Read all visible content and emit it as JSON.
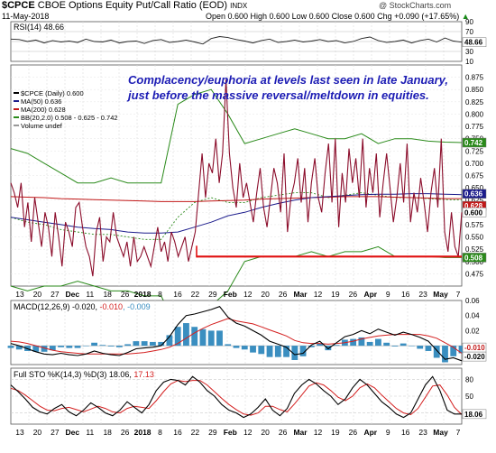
{
  "header": {
    "symbol": "$CPCE",
    "name": "CBOE Options Equity Put/Call Ratio (EOD)",
    "exchange": "INDX",
    "date": "11-May-2018",
    "ohlc": "Open 0.600  High 0.600  Low 0.600  Close 0.600  Chg +0.090 (+17.65%)",
    "chg_arrow": "▲",
    "watermark": "@ StockCharts.com"
  },
  "annotation": {
    "line1": "Complacency/euphoria at levels last seen in late January,",
    "line2": "just before the massive reversal/meltdown in equities."
  },
  "colors": {
    "price": "#8b0d2b",
    "ma50": "#1c1c8c",
    "ma200": "#c21818",
    "bb": "#2a8a1a",
    "macd": "#000000",
    "signal": "#d42020",
    "hist": "#3a8ec0",
    "support": "#e01010"
  },
  "chart_data": [
    {
      "type": "line",
      "panel": "rsi",
      "title": "RSI(14) 48.66",
      "ylim": [
        10,
        90
      ],
      "ticks": [
        "90",
        "70",
        "50",
        "30",
        "10"
      ],
      "last_value_label": "48.66",
      "values": [
        55,
        54,
        50,
        53,
        47,
        52,
        49,
        51,
        48,
        55,
        50,
        49,
        53,
        47,
        50,
        51,
        46,
        52,
        54,
        48,
        50,
        53,
        49,
        45,
        56,
        60,
        58,
        54,
        51,
        47,
        52,
        55,
        48,
        50,
        53,
        49,
        51,
        54,
        50,
        52,
        47,
        50,
        56,
        59,
        52,
        48,
        50,
        53,
        47,
        52,
        55,
        49,
        57,
        51,
        48.66
      ]
    },
    {
      "type": "line",
      "panel": "price",
      "series": [
        {
          "name": "$CPCE (Daily) 0.600",
          "values": [
            0.66,
            0.64,
            0.61,
            0.66,
            0.57,
            0.62,
            0.54,
            0.63,
            0.58,
            0.53,
            0.6,
            0.57,
            0.51,
            0.6,
            0.55,
            0.49,
            0.58,
            0.56,
            0.53,
            0.61,
            0.62,
            0.57,
            0.53,
            0.51,
            0.47,
            0.56,
            0.59,
            0.5,
            0.55,
            0.54,
            0.6,
            0.55,
            0.53,
            0.51,
            0.54,
            0.49,
            0.55,
            0.5,
            0.51,
            0.53,
            0.51,
            0.49,
            0.53,
            0.57,
            0.52,
            0.54,
            0.5,
            0.56,
            0.54,
            0.51,
            0.53,
            0.55,
            0.5,
            0.53,
            0.56,
            0.64,
            0.72,
            0.63,
            0.7,
            0.68,
            0.75,
            0.66,
            0.72,
            0.87,
            0.72,
            0.65,
            0.61,
            0.7,
            0.63,
            0.66,
            0.62,
            0.58,
            0.64,
            0.69,
            0.61,
            0.57,
            0.63,
            0.69,
            0.66,
            0.6,
            0.72,
            0.56,
            0.63,
            0.66,
            0.71,
            0.62,
            0.69,
            0.58,
            0.66,
            0.71,
            0.63,
            0.6,
            0.68,
            0.74,
            0.62,
            0.75,
            0.57,
            0.68,
            0.62,
            0.73,
            0.66,
            0.71,
            0.63,
            0.75,
            0.61,
            0.69,
            0.64,
            0.72,
            0.59,
            0.66,
            0.72,
            0.65,
            0.58,
            0.63,
            0.7,
            0.62,
            0.74,
            0.58,
            0.64,
            0.6,
            0.67,
            0.62,
            0.56,
            0.64,
            0.69,
            0.61,
            0.75,
            0.56,
            0.52,
            0.6,
            0.53,
            0.51,
            0.6
          ]
        },
        {
          "name": "MA(50) 0.636",
          "values": [
            0.59,
            0.585,
            0.58,
            0.575,
            0.57,
            0.567,
            0.565,
            0.56,
            0.558,
            0.558,
            0.56,
            0.57,
            0.58,
            0.593,
            0.6,
            0.61,
            0.618,
            0.625,
            0.63,
            0.632,
            0.634,
            0.636,
            0.637,
            0.637,
            0.638,
            0.638,
            0.637,
            0.636
          ]
        },
        {
          "name": "MA(200) 0.628",
          "values": [
            0.632,
            0.631,
            0.63,
            0.628,
            0.627,
            0.626,
            0.625,
            0.624,
            0.623,
            0.622,
            0.622,
            0.622,
            0.623,
            0.624,
            0.625,
            0.627,
            0.628,
            0.629,
            0.63,
            0.631,
            0.632,
            0.632,
            0.632,
            0.631,
            0.63,
            0.629,
            0.628,
            0.628
          ]
        },
        {
          "name": "BB(20,2.0) 0.508 - 0.625 - 0.742",
          "upper": [
            0.73,
            0.72,
            0.7,
            0.68,
            0.66,
            0.66,
            0.67,
            0.66,
            0.66,
            0.66,
            0.82,
            0.84,
            0.85,
            0.8,
            0.74,
            0.75,
            0.76,
            0.77,
            0.76,
            0.75,
            0.75,
            0.76,
            0.74,
            0.75,
            0.75,
            0.745,
            0.743,
            0.742
          ],
          "middle": [
            0.59,
            0.58,
            0.575,
            0.565,
            0.56,
            0.555,
            0.555,
            0.55,
            0.545,
            0.545,
            0.59,
            0.62,
            0.63,
            0.62,
            0.62,
            0.63,
            0.635,
            0.64,
            0.64,
            0.63,
            0.635,
            0.64,
            0.635,
            0.63,
            0.63,
            0.628,
            0.626,
            0.625
          ],
          "lower": [
            0.45,
            0.44,
            0.45,
            0.45,
            0.46,
            0.45,
            0.44,
            0.44,
            0.43,
            0.43,
            0.36,
            0.4,
            0.41,
            0.44,
            0.5,
            0.51,
            0.51,
            0.51,
            0.52,
            0.51,
            0.52,
            0.52,
            0.53,
            0.51,
            0.51,
            0.51,
            0.508,
            0.508
          ]
        },
        {
          "name": "Volume undef",
          "values": []
        }
      ],
      "ylim": [
        0.45,
        0.9
      ],
      "yticks": [
        "0.875",
        "0.850",
        "0.825",
        "0.800",
        "0.775",
        "0.750",
        "0.725",
        "0.700",
        "0.675",
        "0.650",
        "0.625",
        "0.600",
        "0.575",
        "0.550",
        "0.525",
        "0.500",
        "0.475"
      ],
      "right_labels": {
        "bb_upper": "0.742",
        "ma50": "0.636",
        "ma200": "0.628",
        "close": "0.600",
        "bb_lower": "0.508"
      },
      "support_level": 0.51
    },
    {
      "type": "line",
      "panel": "macd",
      "title_prefix": "MACD(12,26,9)",
      "title_vals": [
        "-0.020",
        "-0.010",
        "-0.009"
      ],
      "ylim": [
        -0.025,
        0.06
      ],
      "yticks": [
        "0.06",
        "0.04",
        "0.02",
        "0.00"
      ],
      "right_labels": [
        "-0.010",
        "-0.020"
      ],
      "series": [
        {
          "name": "macd",
          "values": [
            0.003,
            0.0,
            -0.004,
            -0.008,
            -0.011,
            -0.012,
            -0.01,
            -0.012,
            -0.013,
            -0.011,
            -0.007,
            -0.01,
            -0.012,
            -0.013,
            -0.009,
            -0.004,
            -0.003,
            -0.002,
            0.0,
            0.012,
            0.028,
            0.04,
            0.042,
            0.045,
            0.048,
            0.052,
            0.038,
            0.03,
            0.026,
            0.02,
            0.014,
            0.006,
            0.002,
            -0.002,
            -0.012,
            -0.01,
            0.001,
            0.006,
            -0.004,
            0.004,
            0.012,
            0.015,
            0.02,
            0.016,
            0.022,
            0.018,
            0.014,
            0.018,
            0.015,
            0.011,
            0.006,
            -0.006,
            -0.018,
            -0.016,
            -0.02
          ]
        },
        {
          "name": "signal",
          "values": [
            0.006,
            0.005,
            0.003,
            0.0,
            -0.003,
            -0.006,
            -0.008,
            -0.009,
            -0.01,
            -0.011,
            -0.011,
            -0.011,
            -0.011,
            -0.011,
            -0.011,
            -0.01,
            -0.009,
            -0.007,
            -0.005,
            -0.002,
            0.003,
            0.01,
            0.017,
            0.023,
            0.028,
            0.032,
            0.036,
            0.033,
            0.031,
            0.029,
            0.025,
            0.021,
            0.017,
            0.013,
            0.007,
            0.004,
            0.003,
            0.003,
            0.002,
            0.003,
            0.004,
            0.006,
            0.009,
            0.011,
            0.013,
            0.014,
            0.015,
            0.015,
            0.015,
            0.015,
            0.013,
            0.01,
            0.004,
            -0.002,
            -0.01
          ]
        },
        {
          "name": "histogram",
          "values": [
            -0.003,
            -0.005,
            -0.007,
            -0.008,
            -0.008,
            -0.006,
            -0.002,
            -0.003,
            -0.003,
            0.0,
            0.004,
            0.001,
            -0.001,
            -0.002,
            0.002,
            0.006,
            0.006,
            0.005,
            0.005,
            0.014,
            0.025,
            0.03,
            0.025,
            0.022,
            0.02,
            0.02,
            0.002,
            -0.003,
            -0.005,
            -0.009,
            -0.011,
            -0.015,
            -0.015,
            -0.015,
            -0.019,
            -0.014,
            -0.002,
            0.003,
            -0.006,
            0.001,
            0.008,
            0.009,
            0.011,
            0.005,
            0.009,
            0.004,
            -0.001,
            0.003,
            0.0,
            -0.004,
            -0.007,
            -0.016,
            -0.022,
            -0.014,
            -0.01
          ]
        }
      ]
    },
    {
      "type": "line",
      "panel": "sto",
      "title_prefix": "Full STO %K(14,3) %D(3)",
      "title_vals": [
        "18.06",
        "17.13"
      ],
      "ylim": [
        0,
        100
      ],
      "yticks": [
        "80",
        "50",
        "20"
      ],
      "right_labels": [
        "18.06"
      ],
      "series": [
        {
          "name": "%K",
          "values": [
            70,
            58,
            45,
            30,
            22,
            18,
            28,
            35,
            22,
            15,
            25,
            38,
            30,
            20,
            15,
            25,
            40,
            30,
            20,
            35,
            60,
            75,
            80,
            78,
            70,
            85,
            75,
            60,
            50,
            35,
            25,
            20,
            12,
            18,
            30,
            45,
            25,
            15,
            28,
            55,
            70,
            80,
            72,
            60,
            50,
            35,
            45,
            65,
            80,
            70,
            55,
            40,
            30,
            18,
            12,
            20,
            45,
            70,
            85,
            60,
            25,
            18,
            18.06
          ]
        },
        {
          "name": "%D",
          "values": [
            64,
            60,
            52,
            42,
            32,
            25,
            24,
            28,
            30,
            26,
            22,
            27,
            32,
            28,
            22,
            20,
            28,
            32,
            30,
            28,
            42,
            58,
            72,
            78,
            76,
            78,
            78,
            70,
            58,
            46,
            35,
            26,
            18,
            16,
            20,
            32,
            32,
            26,
            22,
            36,
            52,
            68,
            74,
            70,
            60,
            48,
            42,
            50,
            65,
            72,
            65,
            52,
            40,
            28,
            20,
            17,
            28,
            48,
            68,
            70,
            52,
            30,
            17.13
          ]
        }
      ]
    }
  ],
  "xaxis_top": [
    "13",
    "20",
    "27",
    "Dec",
    "11",
    "18",
    "26",
    "2018",
    "8",
    "16",
    "22",
    "29",
    "Feb",
    "12",
    "20",
    "26",
    "Mar",
    "12",
    "19",
    "26",
    "Apr",
    "9",
    "16",
    "23",
    "May",
    "7"
  ],
  "xaxis_bottom": [
    "13",
    "20",
    "27",
    "Dec",
    "11",
    "18",
    "26",
    "2018",
    "8",
    "16",
    "22",
    "29",
    "Feb",
    "12",
    "20",
    "26",
    "Mar",
    "12",
    "19",
    "26",
    "Apr",
    "9",
    "16",
    "23",
    "May",
    "7"
  ]
}
